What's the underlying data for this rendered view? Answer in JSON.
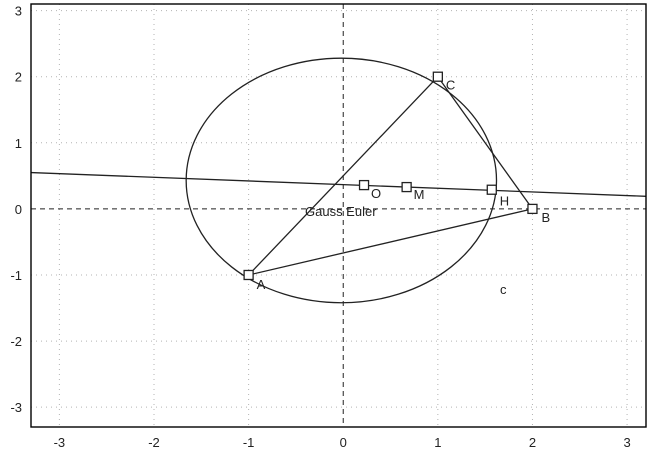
{
  "chart_data": {
    "type": "scatter",
    "title": "",
    "xlabel": "",
    "ylabel": "",
    "xlim": [
      -3.3,
      3.2
    ],
    "ylim": [
      -3.3,
      3.1
    ],
    "grid": true,
    "x_ticks": [
      "-3",
      "-2",
      "-1",
      "0",
      "1",
      "2",
      "3"
    ],
    "y_ticks": [
      "3",
      "2",
      "1",
      "0",
      "-1",
      "-2",
      "-3"
    ],
    "x_tick_values": [
      -3,
      -2,
      -1,
      0,
      1,
      2,
      3
    ],
    "y_tick_values": [
      3,
      2,
      1,
      0,
      -1,
      -2,
      -3
    ],
    "points": [
      {
        "name": "A",
        "label": "A",
        "x": -1,
        "y": -1
      },
      {
        "name": "B",
        "label": "B",
        "x": 2,
        "y": 0
      },
      {
        "name": "C",
        "label": "C",
        "x": 1,
        "y": 2
      },
      {
        "name": "O",
        "label": "O",
        "x": 0.22,
        "y": 0.36
      },
      {
        "name": "M",
        "label": "M",
        "x": 0.67,
        "y": 0.33
      },
      {
        "name": "H",
        "label": "H",
        "x": 1.57,
        "y": 0.29
      }
    ],
    "triangle": [
      "A",
      "B",
      "C"
    ],
    "euler_line": {
      "label": "Gauss Euler",
      "x": [
        -3.3,
        3.2
      ],
      "y": [
        0.55,
        0.19
      ]
    },
    "ellipse": {
      "label": "c",
      "cx": -0.02,
      "cy": 0.43,
      "rx": 1.64,
      "ry": 1.85
    }
  },
  "colors": {
    "axes": "#000000",
    "grid": "#b3b3b3",
    "lines": "#222222"
  }
}
